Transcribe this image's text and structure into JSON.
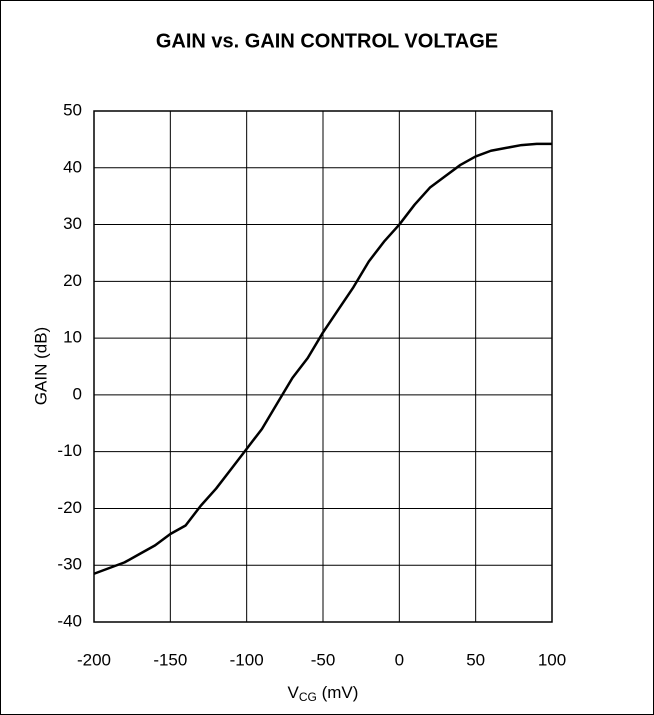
{
  "chart_data": {
    "type": "line",
    "title": "GAIN vs. GAIN CONTROL VOLTAGE",
    "xlabel": {
      "main": "V",
      "sub": "CG",
      "rest": " (mV)"
    },
    "ylabel": "GAIN (dB)",
    "x": [
      -200,
      -180,
      -170,
      -160,
      -150,
      -140,
      -130,
      -120,
      -110,
      -100,
      -90,
      -80,
      -70,
      -60,
      -50,
      -40,
      -30,
      -20,
      -10,
      0,
      10,
      20,
      30,
      40,
      50,
      60,
      70,
      80,
      90,
      100
    ],
    "series": [
      {
        "name": "GAIN",
        "color": "#000000",
        "values": [
          -31.5,
          -29.5,
          -28,
          -26.5,
          -24.5,
          -23,
          -19.5,
          -16.5,
          -13,
          -9.5,
          -6,
          -1.5,
          3,
          6.5,
          11,
          15,
          19,
          23.5,
          27,
          30,
          33.5,
          36.5,
          38.5,
          40.5,
          42,
          43,
          43.5,
          44,
          44.2,
          44.2
        ]
      }
    ],
    "xlim": [
      -200,
      100
    ],
    "xticks": [
      -200,
      -150,
      -100,
      -50,
      0,
      50,
      100
    ],
    "ylim": [
      -40,
      50
    ],
    "yticks": [
      -40,
      -30,
      -20,
      -10,
      0,
      10,
      20,
      30,
      40,
      50
    ],
    "grid": true
  }
}
